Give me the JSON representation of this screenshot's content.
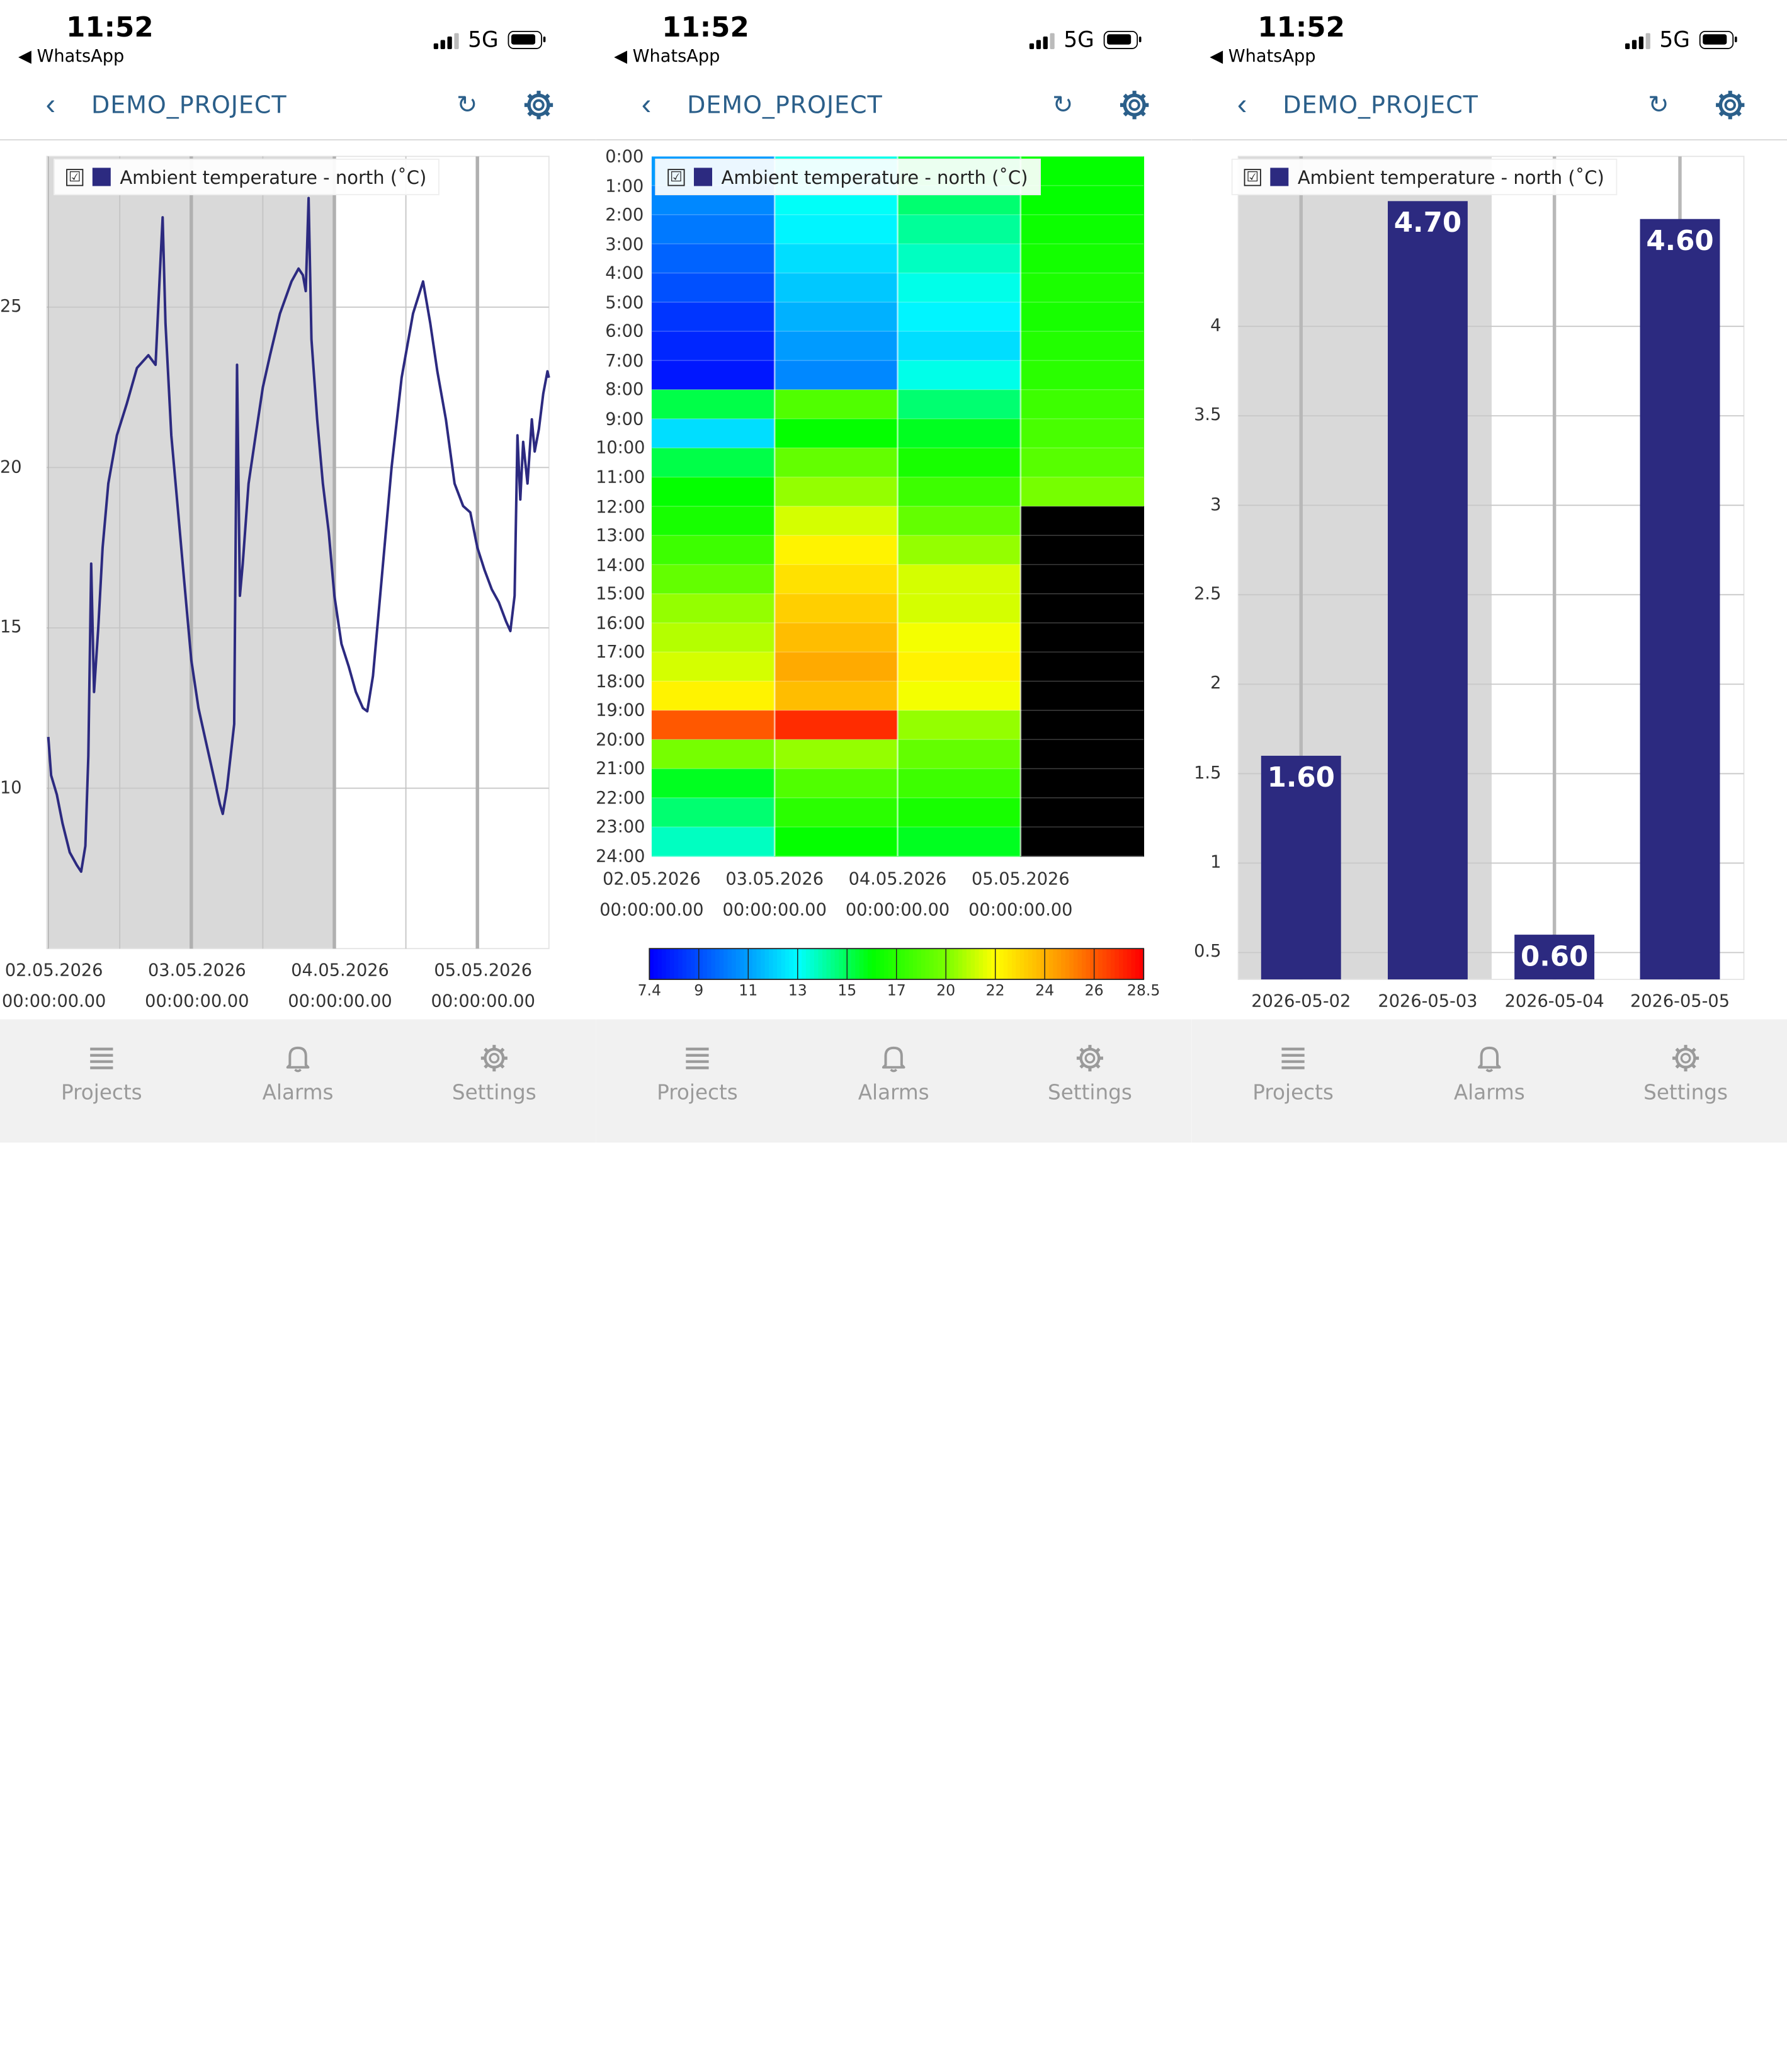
{
  "status": {
    "time": "11:52",
    "back_app": "◀ WhatsApp",
    "network": "5G"
  },
  "header": {
    "back_icon": "‹",
    "title": "DEMO_PROJECT",
    "refresh_icon": "↻"
  },
  "tabs": [
    {
      "label": "Projects",
      "icon": "list-icon"
    },
    {
      "label": "Alarms",
      "icon": "bell-icon"
    },
    {
      "label": "Settings",
      "icon": "gear-icon"
    }
  ],
  "legend": {
    "checked": "☑",
    "label": "Ambient temperature - north (˚C)",
    "color": "#2c2a80"
  },
  "colors": {
    "accent": "#2b5f8a",
    "series": "#2c2a80",
    "shade": "#d9d9d9"
  },
  "panels": [
    {
      "chart_data": {
        "type": "line",
        "series": [
          {
            "name": "Ambient temperature - north (˚C)"
          }
        ],
        "ytick_labels": [
          "25",
          "20",
          "15",
          "10"
        ],
        "yticks": [
          25,
          20,
          15,
          10
        ],
        "ylim": [
          5,
          29.7
        ],
        "xtick_labels": [
          {
            "date": "02.05.2026",
            "time": "00:00:00.00"
          },
          {
            "date": "03.05.2026",
            "time": "00:00:00.00"
          },
          {
            "date": "04.05.2026",
            "time": "00:00:00.00"
          },
          {
            "date": "05.05.2026",
            "time": "00:00:00.00"
          }
        ],
        "x_days": [
          0,
          1,
          2,
          3
        ],
        "xlim": [
          -0.01,
          3.5
        ],
        "points": [
          [
            0.0,
            11.6
          ],
          [
            0.02,
            10.4
          ],
          [
            0.06,
            9.8
          ],
          [
            0.1,
            8.9
          ],
          [
            0.15,
            8.0
          ],
          [
            0.2,
            7.6
          ],
          [
            0.23,
            7.4
          ],
          [
            0.26,
            8.2
          ],
          [
            0.28,
            11.0
          ],
          [
            0.3,
            17.0
          ],
          [
            0.32,
            13.0
          ],
          [
            0.35,
            15.0
          ],
          [
            0.38,
            17.5
          ],
          [
            0.42,
            19.5
          ],
          [
            0.48,
            21.0
          ],
          [
            0.55,
            22.0
          ],
          [
            0.62,
            23.1
          ],
          [
            0.7,
            23.5
          ],
          [
            0.75,
            23.2
          ],
          [
            0.78,
            26.0
          ],
          [
            0.8,
            27.8
          ],
          [
            0.82,
            24.5
          ],
          [
            0.86,
            21.0
          ],
          [
            0.9,
            19.0
          ],
          [
            0.95,
            16.5
          ],
          [
            1.0,
            14.0
          ],
          [
            1.05,
            12.5
          ],
          [
            1.1,
            11.5
          ],
          [
            1.15,
            10.5
          ],
          [
            1.2,
            9.5
          ],
          [
            1.22,
            9.2
          ],
          [
            1.25,
            10.0
          ],
          [
            1.3,
            12.0
          ],
          [
            1.32,
            23.2
          ],
          [
            1.34,
            16.0
          ],
          [
            1.36,
            17.0
          ],
          [
            1.4,
            19.5
          ],
          [
            1.45,
            21.0
          ],
          [
            1.5,
            22.5
          ],
          [
            1.55,
            23.5
          ],
          [
            1.62,
            24.8
          ],
          [
            1.7,
            25.8
          ],
          [
            1.75,
            26.2
          ],
          [
            1.78,
            26.0
          ],
          [
            1.8,
            25.5
          ],
          [
            1.82,
            28.4
          ],
          [
            1.84,
            24.0
          ],
          [
            1.88,
            21.5
          ],
          [
            1.92,
            19.5
          ],
          [
            1.96,
            18.0
          ],
          [
            2.0,
            16.0
          ],
          [
            2.05,
            14.5
          ],
          [
            2.1,
            13.8
          ],
          [
            2.15,
            13.0
          ],
          [
            2.2,
            12.5
          ],
          [
            2.23,
            12.4
          ],
          [
            2.27,
            13.5
          ],
          [
            2.32,
            16.0
          ],
          [
            2.4,
            20.0
          ],
          [
            2.47,
            22.8
          ],
          [
            2.55,
            24.8
          ],
          [
            2.62,
            25.8
          ],
          [
            2.67,
            24.5
          ],
          [
            2.72,
            23.0
          ],
          [
            2.78,
            21.5
          ],
          [
            2.84,
            19.5
          ],
          [
            2.9,
            18.8
          ],
          [
            2.95,
            18.6
          ],
          [
            3.0,
            17.5
          ],
          [
            3.05,
            16.8
          ],
          [
            3.1,
            16.2
          ],
          [
            3.15,
            15.8
          ],
          [
            3.2,
            15.2
          ],
          [
            3.23,
            14.9
          ],
          [
            3.26,
            16.0
          ],
          [
            3.28,
            21.0
          ],
          [
            3.3,
            19.0
          ],
          [
            3.32,
            20.8
          ],
          [
            3.35,
            19.5
          ],
          [
            3.38,
            21.5
          ],
          [
            3.4,
            20.5
          ],
          [
            3.43,
            21.2
          ],
          [
            3.46,
            22.3
          ],
          [
            3.49,
            23.0
          ],
          [
            3.5,
            22.8
          ]
        ],
        "shaded_range": [
          0,
          2
        ]
      }
    },
    {
      "chart_data": {
        "type": "heatmap",
        "hour_labels": [
          "0:00",
          "1:00",
          "2:00",
          "3:00",
          "4:00",
          "5:00",
          "6:00",
          "7:00",
          "8:00",
          "9:00",
          "10:00",
          "11:00",
          "12:00",
          "13:00",
          "14:00",
          "15:00",
          "16:00",
          "17:00",
          "18:00",
          "19:00",
          "20:00",
          "21:00",
          "22:00",
          "23:00",
          "24:00"
        ],
        "day_labels": [
          {
            "date": "02.05.2026",
            "time": "00:00:00.00"
          },
          {
            "date": "03.05.2026",
            "time": "00:00:00.00"
          },
          {
            "date": "04.05.2026",
            "time": "00:00:00.00"
          },
          {
            "date": "05.05.2026",
            "time": "00:00:00.00"
          }
        ],
        "hour_values": [
          [
            11.5,
            11.0,
            10.6,
            10.0,
            9.5,
            8.8,
            8.4,
            8.0,
            16.0,
            13.0,
            16.0,
            17.0,
            17.5,
            18.5,
            19.5,
            20.5,
            21.0,
            21.5,
            22.5,
            26.5,
            20.0,
            16.5,
            15.5,
            14.5
          ],
          [
            14.0,
            13.8,
            13.5,
            13.0,
            12.5,
            12.0,
            11.5,
            11.0,
            19.0,
            17.0,
            19.5,
            20.5,
            21.5,
            22.5,
            23.0,
            23.5,
            24.0,
            24.5,
            24.0,
            27.5,
            20.5,
            19.0,
            18.0,
            17.0
          ],
          [
            16.0,
            15.5,
            15.0,
            14.5,
            14.0,
            13.5,
            13.0,
            14.0,
            15.5,
            16.5,
            17.5,
            18.5,
            19.5,
            20.5,
            21.5,
            21.5,
            22.0,
            22.5,
            22.0,
            20.5,
            19.5,
            18.5,
            17.5,
            16.5
          ],
          [
            17.0,
            17.0,
            17.2,
            17.4,
            17.6,
            17.5,
            17.8,
            18.0,
            18.5,
            18.8,
            19.2,
            20.0,
            null,
            null,
            null,
            null,
            null,
            null,
            null,
            null,
            null,
            null,
            null,
            null
          ]
        ],
        "color_scale": {
          "min": 7.4,
          "max": 28.5,
          "tick_labels": [
            "7.4",
            "9",
            "11",
            "13",
            "15",
            "17",
            "20",
            "22",
            "24",
            "26",
            "28.5"
          ]
        },
        "missing_color": "#000000"
      }
    },
    {
      "chart_data": {
        "type": "bar",
        "categories": [
          "2026-05-02",
          "2026-05-03",
          "2026-05-04",
          "2026-05-05"
        ],
        "series": [
          {
            "name": "Ambient temperature - north (˚C)"
          }
        ],
        "values": [
          1.6,
          4.7,
          0.6,
          4.6
        ],
        "value_labels": [
          "1.60",
          "4.70",
          "0.60",
          "4.60"
        ],
        "ytick_labels": [
          "0.5",
          "1",
          "1.5",
          "2",
          "2.5",
          "3",
          "3.5",
          "4"
        ],
        "yticks": [
          0.5,
          1,
          1.5,
          2,
          2.5,
          3,
          3.5,
          4
        ],
        "ylim": [
          0.35,
          4.95
        ]
      }
    }
  ]
}
